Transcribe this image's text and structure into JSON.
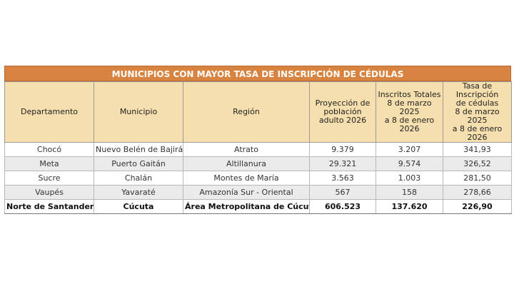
{
  "table": {
    "title": "MUNICIPIOS CON MAYOR TASA DE INSCRIPCIÓN DE CÉDULAS",
    "headers": [
      [
        "Departamento"
      ],
      [
        "Municipio"
      ],
      [
        "Región"
      ],
      [
        "Proyección de",
        "población",
        "adulto 2026"
      ],
      [
        "Inscritos Totales",
        "8 de marzo 2025",
        "a 8 de enero 2026"
      ],
      [
        "Tasa de Inscripción",
        "de cédulas",
        "8 de marzo 2025",
        "a 8 de enero 2026"
      ]
    ],
    "rows": [
      [
        "Chocó",
        "Nuevo Belén de Bajirá",
        "Atrato",
        "9.379",
        "3.207",
        "341,93"
      ],
      [
        "Meta",
        "Puerto Gaitán",
        "Altillanura",
        "29.321",
        "9.574",
        "326,52"
      ],
      [
        "Sucre",
        "Chalán",
        "Montes de María",
        "3.563",
        "1.003",
        "281,50"
      ],
      [
        "Vaupés",
        "Yavaraté",
        "Amazonía Sur - Oriental",
        "567",
        "158",
        "278,66"
      ],
      [
        "Norte de Santander",
        "Cúcuta",
        "Área Metropolitana de Cúcuta",
        "606.523",
        "137.620",
        "226,90"
      ]
    ]
  }
}
